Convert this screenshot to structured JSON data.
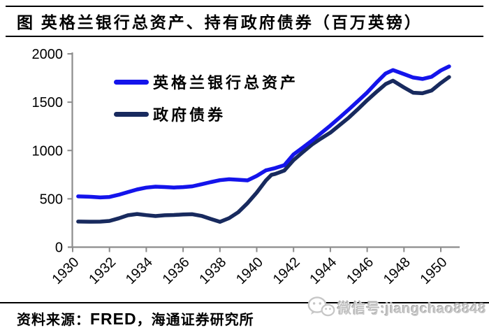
{
  "title": {
    "text": "图  英格兰银行总资产、持有政府债券（百万英镑）"
  },
  "legend": {
    "items": [
      {
        "label": "英格兰银行总资产",
        "color": "#1414eb"
      },
      {
        "label": "政府债券",
        "color": "#182a5e"
      }
    ]
  },
  "footer": {
    "source_prefix": "资料来源：",
    "source_main": "FRED",
    "source_suffix": "，海通证券研究所"
  },
  "watermark": {
    "icon": "wechat-icon",
    "text": "微信号:jiangchao8848"
  },
  "chart_data": {
    "type": "line",
    "title": "英格兰银行总资产、持有政府债券（百万英镑）",
    "xlabel": "",
    "ylabel": "",
    "x_ticks": [
      1930,
      1932,
      1934,
      1936,
      1938,
      1940,
      1942,
      1944,
      1946,
      1948,
      1950
    ],
    "y_ticks": [
      0,
      500,
      1000,
      1500,
      2000
    ],
    "x_range": [
      1930,
      1950.5
    ],
    "y_range": [
      0,
      2000
    ],
    "grid": false,
    "legend_position": "upper-left-inside",
    "axis_color": "#8c8c8c",
    "series": [
      {
        "id": "total-assets",
        "name": "英格兰银行总资产",
        "color": "#1414eb",
        "points": [
          [
            1930.3,
            525
          ],
          [
            1931,
            521
          ],
          [
            1931.5,
            514
          ],
          [
            1932,
            519
          ],
          [
            1932.5,
            542
          ],
          [
            1933,
            570
          ],
          [
            1933.5,
            597
          ],
          [
            1934,
            616
          ],
          [
            1934.5,
            626
          ],
          [
            1935,
            622
          ],
          [
            1935.5,
            617
          ],
          [
            1936,
            621
          ],
          [
            1936.5,
            629
          ],
          [
            1937,
            650
          ],
          [
            1937.5,
            673
          ],
          [
            1938,
            693
          ],
          [
            1938.5,
            702
          ],
          [
            1939,
            697
          ],
          [
            1939.5,
            691
          ],
          [
            1940,
            737
          ],
          [
            1940.5,
            795
          ],
          [
            1941,
            818
          ],
          [
            1941.5,
            848
          ],
          [
            1942,
            960
          ],
          [
            1942.5,
            1030
          ],
          [
            1943,
            1102
          ],
          [
            1943.5,
            1180
          ],
          [
            1944,
            1258
          ],
          [
            1944.5,
            1340
          ],
          [
            1945,
            1425
          ],
          [
            1945.5,
            1512
          ],
          [
            1946,
            1600
          ],
          [
            1946.5,
            1702
          ],
          [
            1947,
            1797
          ],
          [
            1947.4,
            1832
          ],
          [
            1948,
            1790
          ],
          [
            1948.5,
            1755
          ],
          [
            1949,
            1740
          ],
          [
            1949.5,
            1763
          ],
          [
            1950,
            1828
          ],
          [
            1950.45,
            1870
          ]
        ]
      },
      {
        "id": "government-bonds",
        "name": "政府债券",
        "color": "#182a5e",
        "points": [
          [
            1930.3,
            265
          ],
          [
            1931,
            263
          ],
          [
            1931.5,
            264
          ],
          [
            1932,
            271
          ],
          [
            1932.5,
            298
          ],
          [
            1933,
            330
          ],
          [
            1933.5,
            343
          ],
          [
            1934,
            331
          ],
          [
            1934.5,
            322
          ],
          [
            1935,
            330
          ],
          [
            1935.5,
            333
          ],
          [
            1936,
            338
          ],
          [
            1936.5,
            341
          ],
          [
            1937,
            323
          ],
          [
            1937.5,
            292
          ],
          [
            1938,
            262
          ],
          [
            1938.5,
            300
          ],
          [
            1939,
            362
          ],
          [
            1939.5,
            455
          ],
          [
            1940,
            565
          ],
          [
            1940.5,
            690
          ],
          [
            1940.8,
            748
          ],
          [
            1941,
            757
          ],
          [
            1941.5,
            793
          ],
          [
            1942,
            900
          ],
          [
            1942.5,
            982
          ],
          [
            1943,
            1062
          ],
          [
            1943.5,
            1125
          ],
          [
            1944,
            1185
          ],
          [
            1944.5,
            1262
          ],
          [
            1945,
            1340
          ],
          [
            1945.5,
            1428
          ],
          [
            1946,
            1520
          ],
          [
            1946.5,
            1605
          ],
          [
            1947,
            1687
          ],
          [
            1947.4,
            1722
          ],
          [
            1948,
            1652
          ],
          [
            1948.5,
            1598
          ],
          [
            1949,
            1592
          ],
          [
            1949.5,
            1620
          ],
          [
            1950,
            1698
          ],
          [
            1950.45,
            1760
          ]
        ]
      }
    ]
  }
}
